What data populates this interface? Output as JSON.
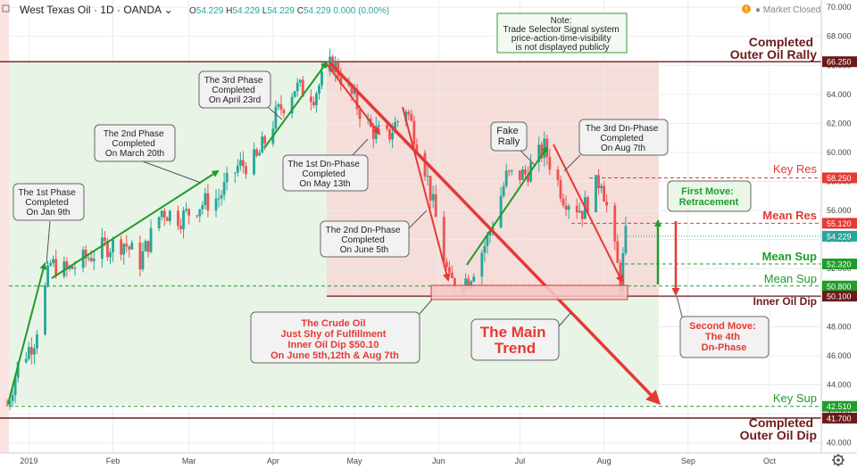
{
  "header": {
    "symbol": "West Texas Oil",
    "timeframe": "1D",
    "source": "OANDA",
    "dropdown_glyph": "⌄",
    "ohlc": [
      {
        "label": "O",
        "value": "54.229"
      },
      {
        "label": "H",
        "value": "54.229"
      },
      {
        "label": "L",
        "value": "54.229"
      },
      {
        "label": "C",
        "value": "54.229"
      }
    ],
    "change": "0.000 (0.00%)",
    "market_status": "Market Closed",
    "market_status_icon": "info-icon",
    "settings_icon": "gear-icon"
  },
  "colors": {
    "up": "#26a69a",
    "down": "#ef5350",
    "green": "#1f9d2a",
    "red": "#e53935",
    "dark_red": "#8b0000",
    "zone_green": "#e8f4e5",
    "zone_red": "#f5ddda",
    "line_dark": "#6b1a1a"
  },
  "note_box": {
    "lines": [
      "Note:",
      "Trade Selector Signal system",
      "price-action-time-visibility",
      "is not displayed publicly"
    ]
  },
  "chart_data": {
    "type": "candlestick",
    "x_ticks": [
      "2019",
      "Feb",
      "Mar",
      "Apr",
      "May",
      "Jun",
      "Jul",
      "Aug",
      "Sep",
      "Oct"
    ],
    "ylim": [
      39.3,
      70.5
    ],
    "y_ticks": [
      "40.000",
      "42.000",
      "44.000",
      "46.000",
      "48.000",
      "50.000",
      "52.000",
      "54.000",
      "56.000",
      "58.000",
      "60.000",
      "62.000",
      "64.000",
      "66.000",
      "68.000",
      "70.000"
    ],
    "close_series": [
      {
        "date": "2018-12-24",
        "close": 42.6
      },
      {
        "date": "2018-12-28",
        "close": 45.3
      },
      {
        "date": "2019-01-03",
        "close": 47.1
      },
      {
        "date": "2019-01-09",
        "close": 52.3
      },
      {
        "date": "2019-01-15",
        "close": 51.8
      },
      {
        "date": "2019-01-22",
        "close": 52.7
      },
      {
        "date": "2019-01-29",
        "close": 53.5
      },
      {
        "date": "2019-02-05",
        "close": 53.8
      },
      {
        "date": "2019-02-11",
        "close": 52.5
      },
      {
        "date": "2019-02-19",
        "close": 56.0
      },
      {
        "date": "2019-02-26",
        "close": 55.5
      },
      {
        "date": "2019-03-05",
        "close": 56.4
      },
      {
        "date": "2019-03-12",
        "close": 56.9
      },
      {
        "date": "2019-03-19",
        "close": 59.0
      },
      {
        "date": "2019-03-26",
        "close": 59.5
      },
      {
        "date": "2019-04-02",
        "close": 62.5
      },
      {
        "date": "2019-04-09",
        "close": 64.5
      },
      {
        "date": "2019-04-16",
        "close": 64.0
      },
      {
        "date": "2019-04-23",
        "close": 66.2
      },
      {
        "date": "2019-04-30",
        "close": 63.9
      },
      {
        "date": "2019-05-07",
        "close": 61.6
      },
      {
        "date": "2019-05-13",
        "close": 61.0
      },
      {
        "date": "2019-05-20",
        "close": 63.1
      },
      {
        "date": "2019-05-27",
        "close": 59.0
      },
      {
        "date": "2019-06-05",
        "close": 51.0
      },
      {
        "date": "2019-06-12",
        "close": 51.3
      },
      {
        "date": "2019-06-19",
        "close": 54.0
      },
      {
        "date": "2019-06-26",
        "close": 58.3
      },
      {
        "date": "2019-07-03",
        "close": 58.5
      },
      {
        "date": "2019-07-10",
        "close": 60.3
      },
      {
        "date": "2019-07-17",
        "close": 57.0
      },
      {
        "date": "2019-07-24",
        "close": 56.0
      },
      {
        "date": "2019-07-31",
        "close": 58.3
      },
      {
        "date": "2019-08-07",
        "close": 51.1
      },
      {
        "date": "2019-08-09",
        "close": 54.2
      }
    ],
    "levels": [
      {
        "name": "Completed Outer Oil Rally",
        "value": 66.25,
        "label": "66.250"
      },
      {
        "name": "Key Res",
        "value": 58.25,
        "label": "58.250"
      },
      {
        "name": "Mean Res",
        "value": 55.12,
        "label": "55.120"
      },
      {
        "name": "Last",
        "value": 54.229,
        "label": "54.229"
      },
      {
        "name": "Mean Sup",
        "value": 52.32,
        "label": "52.320"
      },
      {
        "name": "Mean Sup",
        "value": 50.8,
        "label": "50.800"
      },
      {
        "name": "Inner Oil Dip",
        "value": 50.1,
        "label": "50.100"
      },
      {
        "name": "Key Sup",
        "value": 42.51,
        "label": "42.510"
      },
      {
        "name": "Completed Outer Oil Dip",
        "value": 41.7,
        "label": "41.700"
      }
    ],
    "zone_labels": {
      "outer_rally": [
        "Completed",
        "Outer Oil Rally"
      ],
      "outer_dip": [
        "Completed",
        "Outer Oil Dip"
      ],
      "key_res": "Key Res",
      "mean_res": "Mean Res",
      "mean_sup_1": "Mean Sup",
      "mean_sup_2": "Mean Sup",
      "inner_dip": "Inner Oil Dip",
      "key_sup": "Key Sup"
    },
    "annotations": [
      {
        "name": "phase-1",
        "lines": [
          "The 1st Phase",
          "Completed",
          "On Jan 9th"
        ]
      },
      {
        "name": "phase-2",
        "lines": [
          "The 2nd Phase",
          "Completed",
          "On March 20th"
        ]
      },
      {
        "name": "phase-3",
        "lines": [
          "The 3rd Phase",
          "Completed",
          "On April 23rd"
        ]
      },
      {
        "name": "dn-phase-1",
        "lines": [
          "The 1st Dn-Phase",
          "Completed",
          "On May 13th"
        ]
      },
      {
        "name": "dn-phase-2",
        "lines": [
          "The 2nd Dn-Phase",
          "Completed",
          "On June 5th"
        ]
      },
      {
        "name": "fake-rally",
        "lines": [
          "Fake",
          "Rally"
        ]
      },
      {
        "name": "dn-phase-3",
        "lines": [
          "The 3rd Dn-Phase",
          "Completed",
          "On Aug 7th"
        ]
      },
      {
        "name": "first-move",
        "lines": [
          "First Move:",
          "Retracement"
        ]
      },
      {
        "name": "second-move",
        "lines": [
          "Second Move:",
          "The 4th",
          "Dn-Phase"
        ]
      },
      {
        "name": "crude-oil",
        "lines": [
          "The Crude Oil",
          "Just Shy of Fulfillment",
          "Inner Oil Dip $50.10",
          "On June 5th,12th & Aug 7th"
        ]
      },
      {
        "name": "main-trend",
        "lines": [
          "The Main",
          "Trend"
        ]
      }
    ]
  }
}
